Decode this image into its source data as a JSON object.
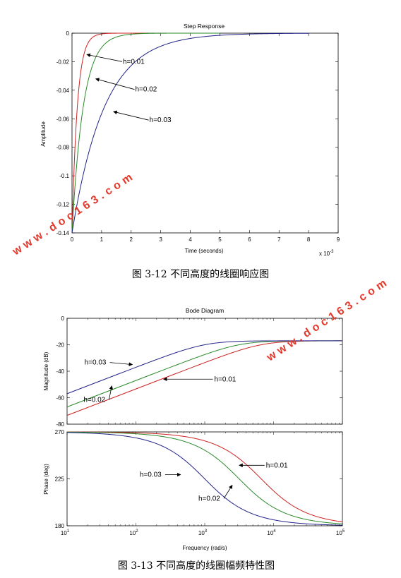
{
  "figure1": {
    "caption": "图 3-12 不同高度的线圈响应图",
    "chart_data": {
      "type": "line",
      "title": "Step Response",
      "xlabel": "Time (seconds)",
      "ylabel": "Amplitude",
      "x_exponent": "x 10",
      "x_exponent_power": "-3",
      "xlim": [
        0,
        9
      ],
      "ylim": [
        -0.14,
        0
      ],
      "xticks": [
        "0",
        "1",
        "2",
        "3",
        "4",
        "5",
        "6",
        "7",
        "8",
        "9"
      ],
      "yticks": [
        "0",
        "-0.02",
        "-0.04",
        "-0.06",
        "-0.08",
        "-0.1",
        "-0.12",
        "-0.14"
      ],
      "series": [
        {
          "name": "h=0.01",
          "color": "#cc2222",
          "initial": -0.14,
          "tau": 0.18,
          "x_end": 2.5
        },
        {
          "name": "h=0.02",
          "color": "#2a8a2a",
          "initial": -0.14,
          "tau": 0.38,
          "x_end": 5
        },
        {
          "name": "h=0.03",
          "color": "#222288",
          "initial": -0.14,
          "tau": 1.1,
          "x_end": 8
        }
      ],
      "annotations": [
        {
          "text": "h=0.01",
          "target": [
            0.5,
            -0.015
          ]
        },
        {
          "text": "h=0.02",
          "target": [
            0.8,
            -0.032
          ]
        },
        {
          "text": "h=0.03",
          "target": [
            1.4,
            -0.055
          ]
        }
      ]
    }
  },
  "figure2": {
    "caption": "图 3-13 不同高度的线圈幅频特性图",
    "chart_data": [
      {
        "type": "line",
        "title": "Bode Diagram",
        "ylabel": "Magnitude (dB)",
        "xscale": "log",
        "xlim_exp": [
          1,
          5
        ],
        "ylim": [
          -80,
          0
        ],
        "yticks": [
          "0",
          "-20",
          "-40",
          "-60",
          "-80"
        ],
        "series": [
          {
            "name": "h=0.01",
            "color": "#cc2222",
            "corner_exp": 3.82,
            "high_db": -17,
            "slope": 20
          },
          {
            "name": "h=0.02",
            "color": "#2a8a2a",
            "corner_exp": 3.5,
            "high_db": -17,
            "slope": 20
          },
          {
            "name": "h=0.03",
            "color": "#222288",
            "corner_exp": 3.0,
            "high_db": -17,
            "slope": 20
          }
        ],
        "annotations": [
          {
            "text": "h=0.03",
            "target_exp": 1.95,
            "target_val": -35
          },
          {
            "text": "h=0.01",
            "target_exp": 2.4,
            "target_val": -46
          },
          {
            "text": "h=0.02",
            "target_exp": 1.65,
            "target_val": -51
          }
        ]
      },
      {
        "type": "line",
        "ylabel": "Phase (deg)",
        "xlabel": "Frequency  (rad/s)",
        "xscale": "log",
        "xlim_exp": [
          1,
          5
        ],
        "ylim": [
          180,
          270
        ],
        "yticks": [
          "270",
          "225",
          "180"
        ],
        "xticks": [
          {
            "base": "10",
            "exp": "1"
          },
          {
            "base": "10",
            "exp": "2"
          },
          {
            "base": "10",
            "exp": "3"
          },
          {
            "base": "10",
            "exp": "4"
          },
          {
            "base": "10",
            "exp": "5"
          }
        ],
        "series": [
          {
            "name": "h=0.01",
            "color": "#cc2222",
            "corner_exp": 3.82
          },
          {
            "name": "h=0.02",
            "color": "#2a8a2a",
            "corner_exp": 3.5
          },
          {
            "name": "h=0.03",
            "color": "#222288",
            "corner_exp": 3.0
          }
        ],
        "annotations": [
          {
            "text": "h=0.01",
            "target_exp": 3.5,
            "target_val": 238
          },
          {
            "text": "h=0.03",
            "target_exp": 2.65,
            "target_val": 229
          },
          {
            "text": "h=0.02",
            "target_exp": 3.4,
            "target_val": 219
          }
        ]
      }
    ]
  },
  "watermark": {
    "text": "www.doc163.com",
    "color": "#e23b2e"
  }
}
